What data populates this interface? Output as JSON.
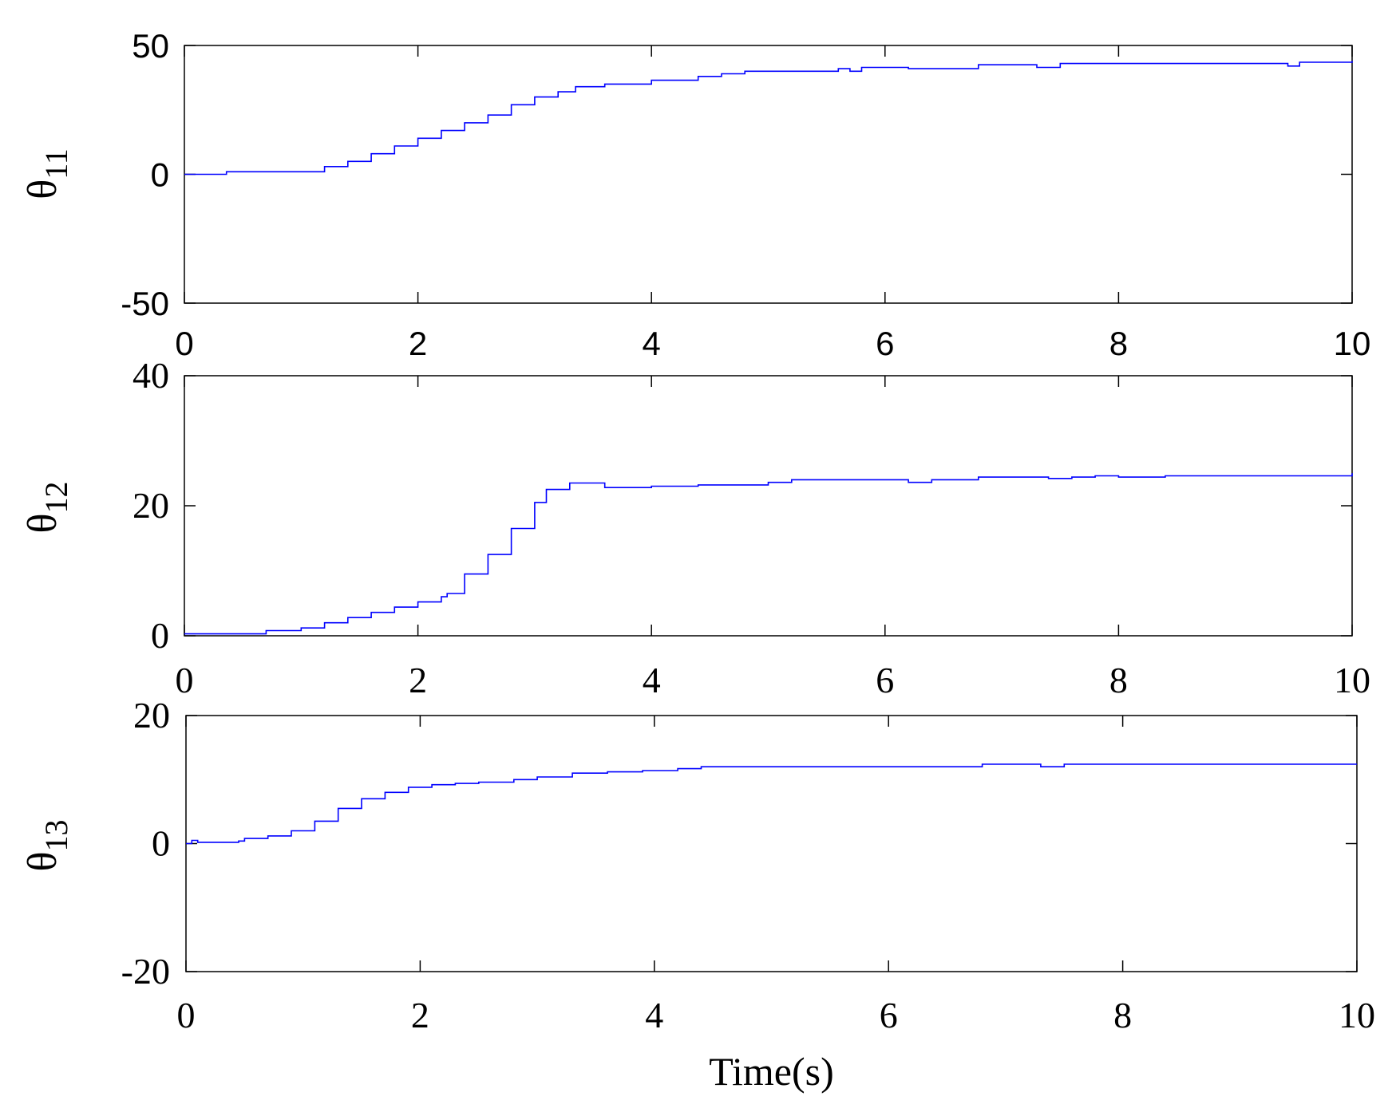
{
  "chart_data": [
    {
      "type": "line",
      "ylabel": "θ11",
      "ylabel_symbol": "θ",
      "ylabel_sub": "11",
      "xlabel": "",
      "xlim": [
        0,
        10
      ],
      "ylim": [
        -50,
        50
      ],
      "xticks": [
        "0",
        "2",
        "4",
        "6",
        "8",
        "10"
      ],
      "yticks": [
        "50",
        "0",
        "-50"
      ],
      "grid": false,
      "line_color": "#0000ff",
      "series": [
        {
          "x": [
            0,
            0.35,
            0.36,
            1.0,
            1.2,
            1.4,
            1.6,
            1.8,
            2.0,
            2.2,
            2.4,
            2.6,
            2.8,
            3.0,
            3.2,
            3.35,
            3.6,
            3.9,
            4.0,
            4.4,
            4.6,
            4.8,
            5.6,
            5.7,
            5.8,
            6.2,
            6.8,
            7.3,
            7.5,
            9.35,
            9.45,
            9.55,
            10.0
          ],
          "y": [
            0,
            0,
            1,
            1,
            3,
            5,
            8,
            11,
            14,
            17,
            20,
            23,
            27,
            30,
            32,
            34,
            35,
            35,
            36.5,
            38,
            39,
            40,
            41,
            40,
            41.5,
            41,
            42.5,
            41.5,
            43,
            43,
            42,
            43.5,
            44
          ]
        }
      ]
    },
    {
      "type": "line",
      "ylabel": "θ12",
      "ylabel_symbol": "θ",
      "ylabel_sub": "12",
      "xlabel": "",
      "xlim": [
        0,
        10
      ],
      "ylim": [
        0,
        40
      ],
      "xticks": [
        "0",
        "2",
        "4",
        "6",
        "8",
        "10"
      ],
      "yticks": [
        "40",
        "20",
        "0"
      ],
      "grid": false,
      "line_color": "#0000ff",
      "series": [
        {
          "x": [
            0,
            0.65,
            0.7,
            1.0,
            1.2,
            1.4,
            1.6,
            1.8,
            2.0,
            2.2,
            2.25,
            2.4,
            2.6,
            2.8,
            3.0,
            3.1,
            3.3,
            3.45,
            3.6,
            3.8,
            4.0,
            4.4,
            4.8,
            5.0,
            5.2,
            6.0,
            6.2,
            6.4,
            6.8,
            7.4,
            7.6,
            7.8,
            8.0,
            8.4,
            9.0,
            9.7,
            10.0
          ],
          "y": [
            0.3,
            0.3,
            0.8,
            1.2,
            2.0,
            2.8,
            3.6,
            4.4,
            5.2,
            6.0,
            6.5,
            9.5,
            12.5,
            16.5,
            20.5,
            22.5,
            23.5,
            23.5,
            22.8,
            22.8,
            23.0,
            23.2,
            23.2,
            23.6,
            24.0,
            24.0,
            23.6,
            24.0,
            24.4,
            24.2,
            24.4,
            24.6,
            24.4,
            24.6,
            24.6,
            24.6,
            25.0
          ]
        }
      ]
    },
    {
      "type": "line",
      "ylabel": "θ13",
      "ylabel_symbol": "θ",
      "ylabel_sub": "13",
      "xlabel": "Time(s)",
      "xlim": [
        0,
        10
      ],
      "ylim": [
        -20,
        20
      ],
      "xticks": [
        "0",
        "2",
        "4",
        "6",
        "8",
        "10"
      ],
      "yticks": [
        "20",
        "0",
        "-20"
      ],
      "grid": false,
      "line_color": "#0000ff",
      "series": [
        {
          "x": [
            0,
            0.05,
            0.1,
            0.45,
            0.5,
            0.7,
            0.9,
            1.1,
            1.3,
            1.5,
            1.7,
            1.9,
            2.1,
            2.3,
            2.5,
            2.8,
            3.0,
            3.3,
            3.6,
            3.9,
            4.2,
            4.4,
            5.0,
            6.0,
            6.8,
            7.3,
            7.5,
            8.0,
            9.0,
            10.0
          ],
          "y": [
            0,
            0.5,
            0.2,
            0.4,
            0.8,
            1.2,
            2.0,
            3.5,
            5.5,
            7.0,
            8.0,
            8.8,
            9.2,
            9.4,
            9.6,
            10.0,
            10.4,
            11.0,
            11.2,
            11.4,
            11.7,
            12.0,
            12.0,
            12.0,
            12.4,
            12.0,
            12.4,
            12.4,
            12.4,
            12.4
          ]
        }
      ]
    }
  ]
}
